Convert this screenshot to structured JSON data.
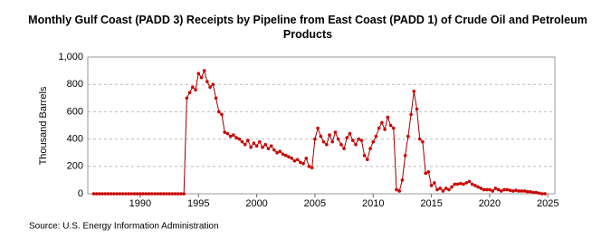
{
  "chart_data": {
    "type": "line",
    "title": "Monthly Gulf Coast (PADD 3) Receipts by Pipeline from East Coast (PADD 1) of Crude Oil and Petroleum Products",
    "y_label": "Thousand Barrels",
    "source": "Source: U.S. Energy Information Administration",
    "xlim": [
      1985.5,
      2025.6
    ],
    "xticks": [
      1990,
      1995,
      2000,
      2005,
      2010,
      2015,
      2020,
      2025
    ],
    "ylim": [
      0,
      1000
    ],
    "yticks": [
      0,
      200,
      400,
      600,
      800,
      {
        "value": 1000,
        "label": "1,000"
      }
    ],
    "grid": true,
    "series": [
      {
        "name": "Receipts",
        "color": "#cc0000",
        "line_color": "#990000",
        "x": [
          1986,
          1986.25,
          1986.5,
          1986.75,
          1987,
          1987.25,
          1987.5,
          1987.75,
          1988,
          1988.25,
          1988.5,
          1988.75,
          1989,
          1989.25,
          1989.5,
          1989.75,
          1990,
          1990.25,
          1990.5,
          1990.75,
          1991,
          1991.25,
          1991.5,
          1991.75,
          1992,
          1992.25,
          1992.5,
          1992.75,
          1993,
          1993.25,
          1993.5,
          1993.75,
          1994,
          1994.25,
          1994.5,
          1994.75,
          1995,
          1995.25,
          1995.5,
          1995.75,
          1996,
          1996.25,
          1996.5,
          1996.75,
          1997,
          1997.25,
          1997.5,
          1997.75,
          1998,
          1998.25,
          1998.5,
          1998.75,
          1999,
          1999.25,
          1999.5,
          1999.75,
          2000,
          2000.25,
          2000.5,
          2000.75,
          2001,
          2001.25,
          2001.5,
          2001.75,
          2002,
          2002.25,
          2002.5,
          2002.75,
          2003,
          2003.25,
          2003.5,
          2003.75,
          2004,
          2004.25,
          2004.5,
          2004.75,
          2005,
          2005.25,
          2005.5,
          2005.75,
          2006,
          2006.25,
          2006.5,
          2006.75,
          2007,
          2007.25,
          2007.5,
          2007.75,
          2008,
          2008.25,
          2008.5,
          2008.75,
          2009,
          2009.25,
          2009.5,
          2009.75,
          2010,
          2010.25,
          2010.5,
          2010.75,
          2011,
          2011.25,
          2011.5,
          2011.75,
          2012,
          2012.25,
          2012.5,
          2012.75,
          2013,
          2013.25,
          2013.5,
          2013.75,
          2014,
          2014.25,
          2014.5,
          2014.75,
          2015,
          2015.25,
          2015.5,
          2015.75,
          2016,
          2016.25,
          2016.5,
          2016.75,
          2017,
          2017.25,
          2017.5,
          2017.75,
          2018,
          2018.25,
          2018.5,
          2018.75,
          2019,
          2019.25,
          2019.5,
          2019.75,
          2020,
          2020.25,
          2020.5,
          2020.75,
          2021,
          2021.25,
          2021.5,
          2021.75,
          2022,
          2022.25,
          2022.5,
          2022.75,
          2023,
          2023.25,
          2023.5,
          2023.75,
          2024,
          2024.25,
          2024.5,
          2024.75
        ],
        "values": [
          0,
          0,
          0,
          0,
          0,
          0,
          0,
          0,
          0,
          0,
          0,
          0,
          0,
          0,
          0,
          0,
          0,
          0,
          0,
          0,
          0,
          0,
          0,
          0,
          0,
          0,
          0,
          0,
          0,
          0,
          0,
          0,
          700,
          740,
          780,
          760,
          880,
          850,
          900,
          820,
          780,
          800,
          700,
          600,
          580,
          450,
          440,
          420,
          430,
          410,
          400,
          380,
          360,
          390,
          340,
          370,
          350,
          380,
          340,
          360,
          330,
          350,
          320,
          300,
          310,
          290,
          280,
          270,
          260,
          240,
          250,
          230,
          220,
          260,
          200,
          190,
          400,
          480,
          420,
          380,
          360,
          430,
          380,
          450,
          400,
          360,
          330,
          410,
          440,
          390,
          360,
          400,
          390,
          280,
          250,
          330,
          380,
          420,
          480,
          520,
          470,
          560,
          500,
          480,
          30,
          20,
          100,
          280,
          420,
          580,
          750,
          620,
          400,
          380,
          150,
          160,
          60,
          80,
          30,
          40,
          20,
          40,
          30,
          50,
          70,
          70,
          75,
          70,
          80,
          90,
          70,
          60,
          50,
          40,
          30,
          30,
          30,
          20,
          40,
          30,
          20,
          30,
          30,
          25,
          20,
          25,
          20,
          20,
          20,
          15,
          15,
          10,
          10,
          5,
          0,
          0
        ]
      }
    ]
  }
}
